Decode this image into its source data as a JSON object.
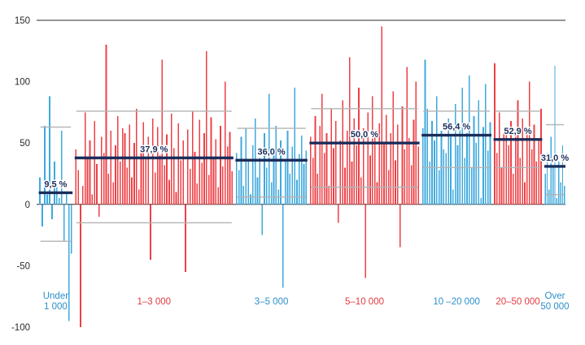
{
  "chart_data": {
    "type": "bar",
    "title": "",
    "xlabel": "",
    "ylabel": "",
    "ylim": [
      -100,
      150
    ],
    "y_ticks": [
      150,
      100,
      50,
      0,
      -50,
      -100
    ],
    "legend": "none",
    "grid": "off",
    "theme": {
      "bar_blue": "#3fa9dc",
      "bar_red": "#ee4046",
      "label_blue": "#2a8fc7",
      "label_red": "#e23a40",
      "mean_line": "#1b2d5b",
      "range_line": "#b3b3b3",
      "axis_line": "#2b2b2b",
      "tick_text": "#2b2b2b",
      "mean_text": "#1b2d5b",
      "background": "#ffffff"
    },
    "groups": [
      {
        "category": "Under 1 000",
        "label_lines": [
          "Under",
          "1 000"
        ],
        "color": "blue",
        "mean_pct": 9.5,
        "mean_label": "9,5 %",
        "range_hi": 63,
        "range_lo": -30,
        "span": [
          0.004,
          0.068
        ],
        "values": [
          22,
          -18,
          64,
          8,
          88,
          -12,
          35,
          15,
          5,
          60,
          -30,
          10,
          -95,
          -40
        ]
      },
      {
        "category": "1–3 000",
        "label_lines": [
          "1–3 000"
        ],
        "color": "red",
        "mean_pct": 37.9,
        "mean_label": "37,9 %",
        "range_hi": 76,
        "range_lo": -15,
        "span": [
          0.072,
          0.372
        ],
        "values": [
          45,
          28,
          -100,
          15,
          75,
          38,
          52,
          8,
          68,
          33,
          -10,
          55,
          42,
          130,
          25,
          60,
          18,
          48,
          72,
          35,
          62,
          58,
          30,
          65,
          22,
          50,
          78,
          12,
          44,
          67,
          38,
          55,
          -45,
          70,
          26,
          63,
          40,
          118,
          32,
          57,
          20,
          74,
          46,
          10,
          66,
          36,
          52,
          -55,
          61,
          29,
          76,
          43,
          17,
          69,
          34,
          58,
          125,
          24,
          71,
          39,
          53,
          14,
          64,
          31,
          100,
          47,
          59,
          27
        ]
      },
      {
        "category": "3–5 000",
        "label_lines": [
          "3–5 000"
        ],
        "color": "blue",
        "mean_pct": 36.0,
        "mean_label": "36,0 %",
        "range_hi": 62,
        "range_lo": 6,
        "span": [
          0.376,
          0.512
        ],
        "values": [
          42,
          28,
          55,
          15,
          62,
          35,
          8,
          48,
          70,
          22,
          38,
          -25,
          58,
          30,
          90,
          18,
          45,
          64,
          12,
          52,
          -68,
          36,
          60,
          25,
          47,
          95,
          20,
          41,
          56,
          33,
          44
        ]
      },
      {
        "category": "5–10 000",
        "label_lines": [
          "5–10 000"
        ],
        "color": "red",
        "mean_pct": 50.0,
        "mean_label": "50,0 %",
        "range_hi": 78,
        "range_lo": 14,
        "span": [
          0.516,
          0.724
        ],
        "values": [
          55,
          38,
          72,
          25,
          64,
          90,
          42,
          58,
          15,
          78,
          46,
          68,
          -15,
          52,
          85,
          30,
          60,
          120,
          35,
          70,
          48,
          95,
          22,
          62,
          -60,
          75,
          40,
          88,
          55,
          18,
          66,
          145,
          50,
          73,
          28,
          58,
          92,
          36,
          65,
          -35,
          80,
          45,
          112,
          54,
          32,
          69,
          100,
          47
        ]
      },
      {
        "category": "10–20 000",
        "label_lines": [
          "10 –20 000"
        ],
        "color": "blue",
        "mean_pct": 56.4,
        "mean_label": "56,4 %",
        "range_hi": 76,
        "range_lo": 30,
        "span": [
          0.728,
          0.86
        ],
        "values": [
          62,
          118,
          78,
          35,
          68,
          52,
          88,
          28,
          60,
          45,
          42,
          70,
          55,
          12,
          82,
          48,
          65,
          95,
          38,
          58,
          105,
          30,
          72,
          50,
          85,
          5,
          63,
          98,
          44,
          67
        ]
      },
      {
        "category": "20–50 000",
        "label_lines": [
          "20–50 000"
        ],
        "color": "red",
        "mean_pct": 52.9,
        "mean_label": "52,9 %",
        "range_hi": 76,
        "range_lo": 30,
        "span": [
          0.864,
          0.956
        ],
        "values": [
          115,
          42,
          75,
          30,
          62,
          58,
          48,
          68,
          25,
          55,
          85,
          38,
          70,
          18,
          60,
          100,
          45,
          65,
          35,
          52,
          78
        ]
      },
      {
        "category": "Over 50 000",
        "label_lines": [
          "Over",
          "50 000"
        ],
        "color": "blue",
        "mean_pct": 31.0,
        "mean_label": "31,0 %",
        "range_hi": 65,
        "range_lo": 8,
        "span": [
          0.96,
          1.0
        ],
        "values": [
          25,
          42,
          12,
          55,
          30,
          113,
          5,
          35,
          18,
          48,
          15
        ]
      }
    ]
  }
}
